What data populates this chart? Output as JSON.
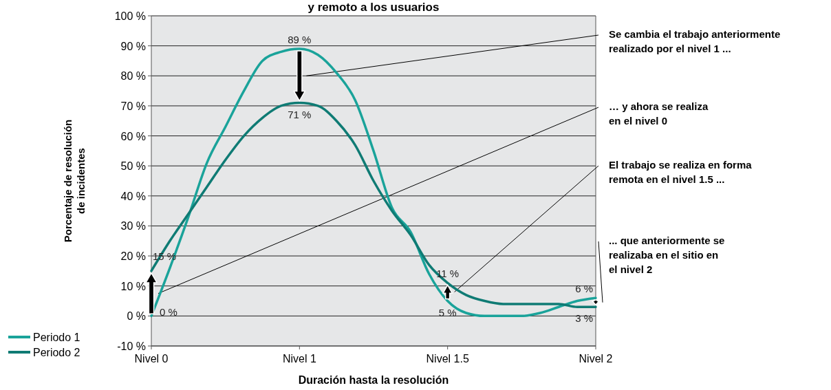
{
  "chart_data": {
    "type": "line",
    "title": "y remoto a los usuarios",
    "xlabel": "Duración hasta la resolución",
    "ylabel": "Porcentaje de resolución\nde incidentes",
    "categories": [
      "Nivel 0",
      null,
      null,
      null,
      null,
      null,
      null,
      null,
      "Nivel 1",
      null,
      null,
      null,
      null,
      null,
      null,
      null,
      "Nivel 1.5",
      null,
      null,
      null,
      null,
      null,
      null,
      null,
      "Nivel 2"
    ],
    "ylim": [
      -10,
      100
    ],
    "yticks": [
      {
        "value": -10,
        "label": "-10 %"
      },
      {
        "value": 0,
        "label": "0 %"
      },
      {
        "value": 10,
        "label": "10 %"
      },
      {
        "value": 20,
        "label": "20 %"
      },
      {
        "value": 30,
        "label": "30 %"
      },
      {
        "value": 40,
        "label": "40 %"
      },
      {
        "value": 50,
        "label": "50 %"
      },
      {
        "value": 60,
        "label": "60 %"
      },
      {
        "value": 70,
        "label": "70 %"
      },
      {
        "value": 80,
        "label": "80 %"
      },
      {
        "value": 90,
        "label": "90 %"
      },
      {
        "value": 100,
        "label": "100 %"
      }
    ],
    "grid": "y",
    "legend": "bottom left",
    "marker": "none",
    "line_style": "solid",
    "series": [
      {
        "name": "Periodo 1",
        "color": "#1aa39a",
        "values": [
          0,
          16,
          33,
          51,
          63,
          75,
          85,
          88,
          89,
          87,
          81,
          72,
          55,
          36,
          28,
          14,
          5,
          1,
          0,
          0,
          0,
          1,
          3,
          5,
          6
        ],
        "value_labels": [
          "0 %",
          null,
          null,
          null,
          null,
          null,
          null,
          null,
          "89 %",
          null,
          null,
          null,
          null,
          null,
          null,
          null,
          "5 %",
          null,
          null,
          null,
          null,
          null,
          null,
          null,
          "6 %"
        ]
      },
      {
        "name": "Periodo 2",
        "color": "#0f7b74",
        "values": [
          15,
          25,
          34,
          43,
          52,
          60,
          66,
          70,
          71,
          70,
          65,
          57,
          45,
          35,
          27,
          17,
          11,
          7,
          5,
          4,
          4,
          4,
          4,
          3,
          3
        ],
        "value_labels": [
          "15 %",
          null,
          null,
          null,
          null,
          null,
          null,
          null,
          "71 %",
          null,
          null,
          null,
          null,
          null,
          null,
          null,
          "11 %",
          null,
          null,
          null,
          null,
          null,
          null,
          null,
          "3 %"
        ]
      }
    ],
    "annotations": [
      "Se cambia el trabajo anteriormente\nrealizado por el nivel 1 ...",
      "… y ahora se realiza\nen el nivel 0",
      "El trabajo se realiza en forma\nremota en el nivel 1.5 ...",
      "... que anteriormente se\nrealizaba en el sitio en\nel nivel 2"
    ]
  }
}
